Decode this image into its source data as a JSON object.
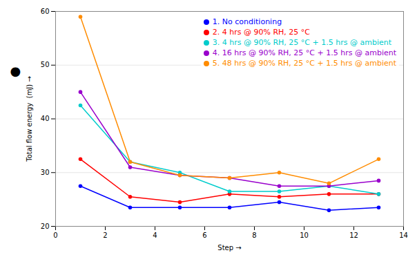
{
  "chart_data": {
    "type": "line",
    "x": [
      1,
      3,
      5,
      7,
      9,
      11,
      13
    ],
    "series": [
      {
        "name": "1. No conditioning",
        "color": "#0000FF",
        "values": [
          27.5,
          23.5,
          23.5,
          23.5,
          24.5,
          23.0,
          23.5
        ]
      },
      {
        "name": "2. 4 hrs @ 90% RH, 25 °C",
        "color": "#FF0000",
        "values": [
          32.5,
          25.5,
          24.5,
          26.0,
          25.5,
          26.0,
          26.0
        ]
      },
      {
        "name": "3. 4 hrs @ 90% RH, 25 °C + 1.5 hrs @ ambient",
        "color": "#00CCCC",
        "values": [
          42.5,
          32.0,
          30.0,
          26.5,
          26.5,
          27.5,
          26.0
        ]
      },
      {
        "name": "4. 16 hrs @ 90% RH, 25 °C + 1.5 hrs @ ambient",
        "color": "#9900CC",
        "values": [
          45.0,
          31.0,
          29.5,
          29.0,
          27.5,
          27.5,
          28.5
        ]
      },
      {
        "name": "5. 48 hrs @ 90% RH, 25 °C + 1.5 hrs @ ambient",
        "color": "#FF8C00",
        "values": [
          59.0,
          32.0,
          29.5,
          29.0,
          30.0,
          28.0,
          32.5
        ]
      }
    ],
    "xlabel": "Step",
    "ylabel": "Total flow energy  (mJ)",
    "xlim": [
      0,
      14
    ],
    "ylim": [
      20,
      60
    ],
    "xticks": [
      0,
      2,
      4,
      6,
      8,
      10,
      12,
      14
    ],
    "yticks": [
      20,
      30,
      40,
      50,
      60
    ],
    "grid": true,
    "legend": "top-right",
    "marker": "circle",
    "annotations": [
      "●"
    ]
  }
}
